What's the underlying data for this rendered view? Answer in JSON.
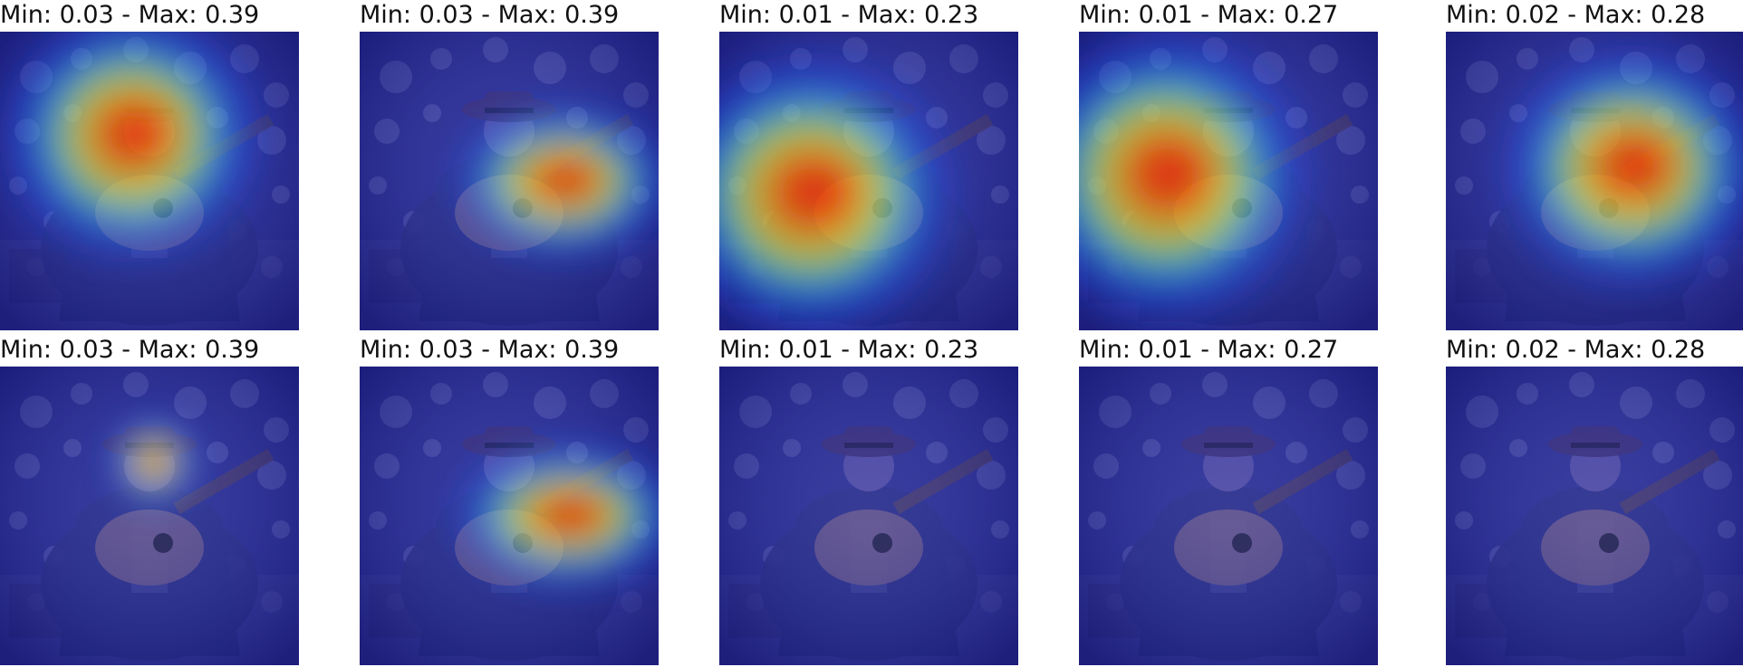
{
  "figure": {
    "rows": [
      {
        "panels": [
          {
            "title": "Min: 0.03 - Max: 0.39",
            "colormap": "jet"
          },
          {
            "title": "Min: 0.03 - Max: 0.39",
            "colormap": "jet"
          },
          {
            "title": "Min: 0.01 - Max: 0.23",
            "colormap": "jet"
          },
          {
            "title": "Min: 0.01 - Max: 0.27",
            "colormap": "jet"
          },
          {
            "title": "Min: 0.02 - Max: 0.28",
            "colormap": "jet"
          }
        ]
      },
      {
        "panels": [
          {
            "title": "Min: 0.03 - Max: 0.39",
            "colormap": "jet"
          },
          {
            "title": "Min: 0.03 - Max: 0.39",
            "colormap": "jet"
          },
          {
            "title": "Min: 0.01 - Max: 0.23",
            "colormap": "jet"
          },
          {
            "title": "Min: 0.01 - Max: 0.27",
            "colormap": "jet"
          },
          {
            "title": "Min: 0.02 - Max: 0.28",
            "colormap": "jet"
          }
        ]
      }
    ]
  }
}
